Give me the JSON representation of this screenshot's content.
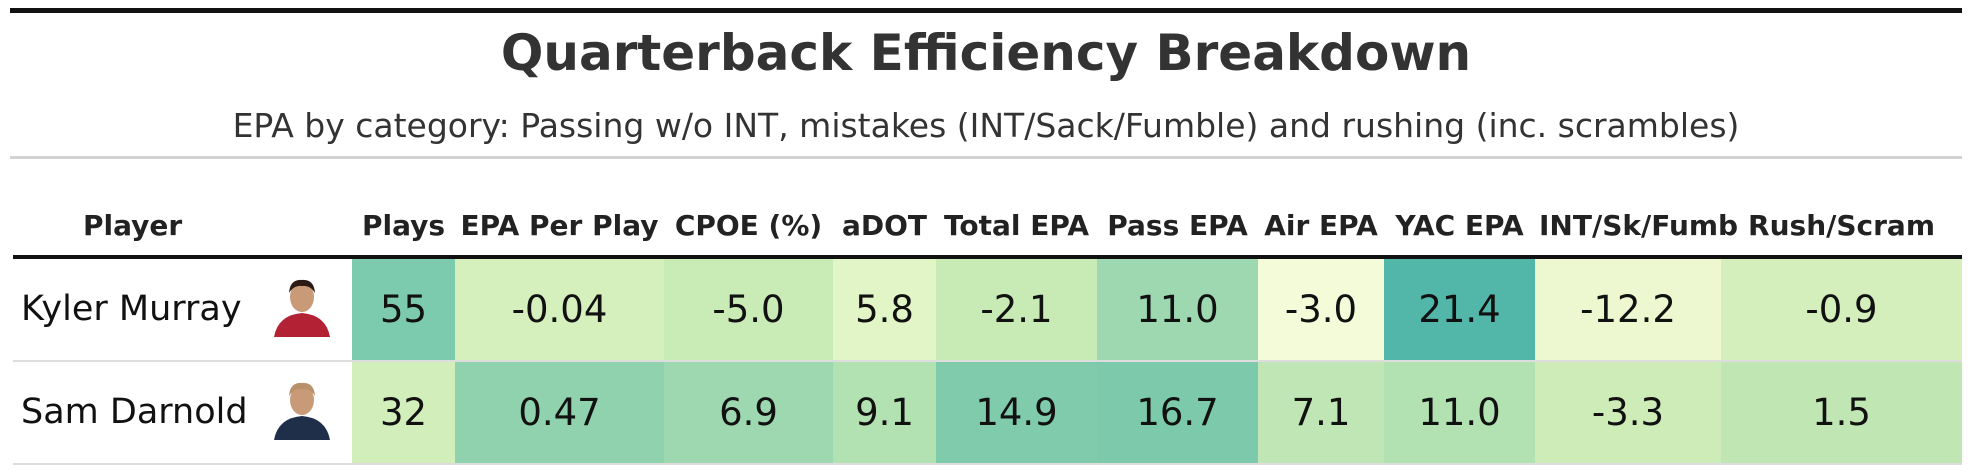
{
  "header": {
    "title": "Quarterback Efficiency Breakdown",
    "subtitle": "EPA by category: Passing w/o INT, mistakes (INT/Sack/Fumble) and rushing (inc. scrambles)"
  },
  "table": {
    "columns": [
      "Player",
      "Plays",
      "EPA Per Play",
      "CPOE (%)",
      "aDOT",
      "Total EPA",
      "Pass EPA",
      "Air EPA",
      "YAC EPA",
      "INT/Sk/Fumb",
      "Rush/Scram"
    ],
    "rows": [
      [
        "Kyler Murray",
        "55",
        "-0.04",
        "-5.0",
        "5.8",
        "-2.1",
        "11.0",
        "-3.0",
        "21.4",
        "-12.2",
        "-0.9"
      ],
      [
        "Sam Darnold",
        "32",
        "0.47",
        "6.9",
        "9.1",
        "14.9",
        "16.7",
        "7.1",
        "11.0",
        "-3.3",
        "1.5"
      ]
    ],
    "colors": [
      [
        null,
        "#7dcbae",
        "#d5f0bc",
        "#c9ebb6",
        "#e2f5c6",
        "#c8eab5",
        "#9dd8b0",
        "#f3fbd9",
        "#52b6a9",
        "#eef8d0",
        "#d5efbc"
      ],
      [
        null,
        "#d2efbb",
        "#8fd2ad",
        "#9ed8b0",
        "#b3e2b2",
        "#7fcbab",
        "#7ccaab",
        "#bfe6b4",
        "#b2e1b2",
        "#cdecb8",
        "#c0e6b4"
      ]
    ]
  }
}
